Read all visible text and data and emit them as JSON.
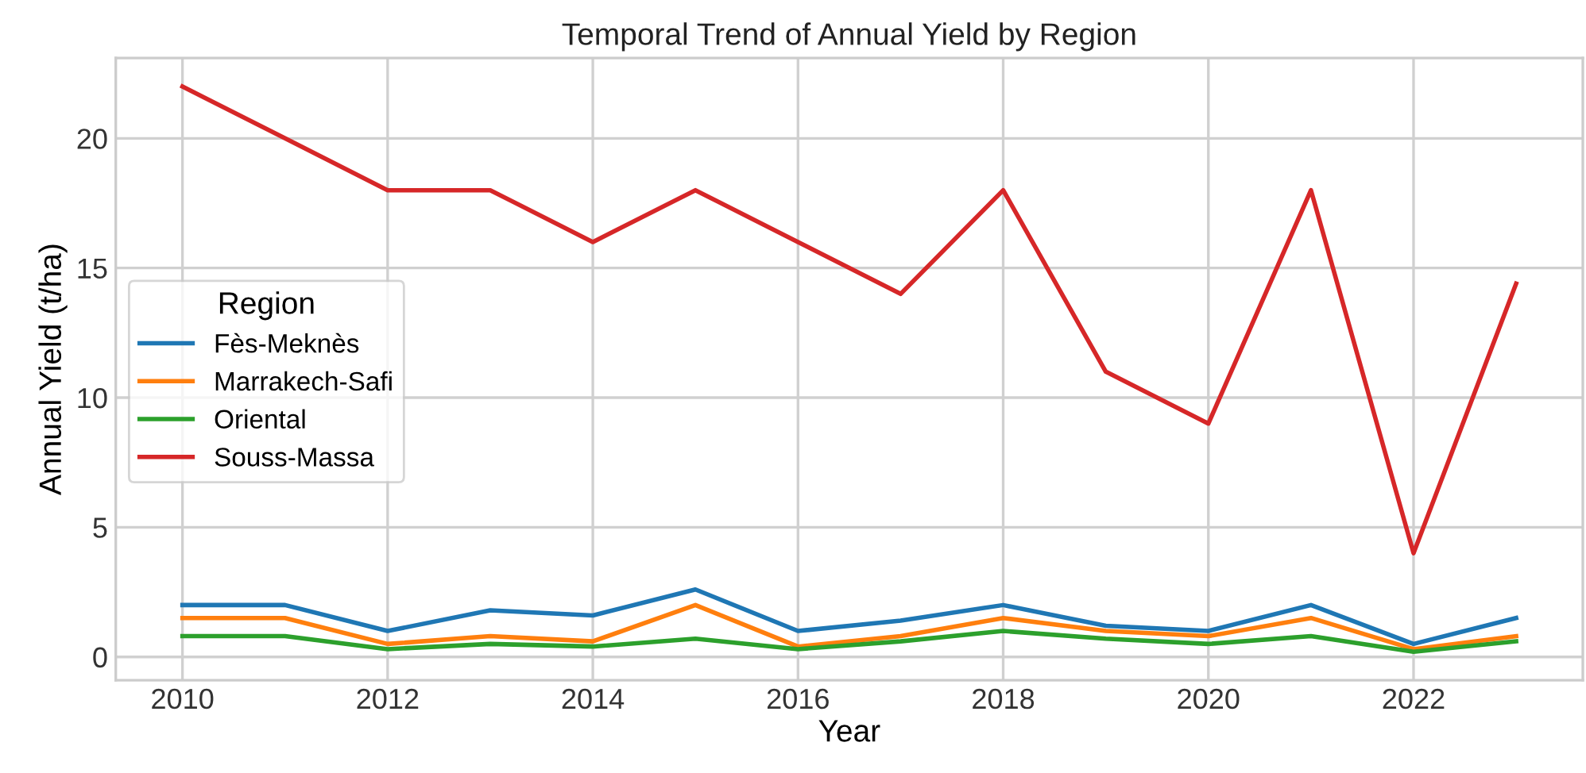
{
  "chart_data": {
    "type": "line",
    "title": "Temporal Trend of Annual Yield by Region",
    "xlabel": "Year",
    "ylabel": "Annual Yield (t/ha)",
    "legend_title": "Region",
    "x": [
      2010,
      2011,
      2012,
      2013,
      2014,
      2015,
      2016,
      2017,
      2018,
      2019,
      2020,
      2021,
      2022,
      2023
    ],
    "series": [
      {
        "name": "Fès-Meknès",
        "color": "#1f77b4",
        "values": [
          2.0,
          2.0,
          1.0,
          1.8,
          1.6,
          2.6,
          1.0,
          1.4,
          2.0,
          1.2,
          1.0,
          2.0,
          0.5,
          1.5
        ]
      },
      {
        "name": "Marrakech-Safi",
        "color": "#ff7f0e",
        "values": [
          1.5,
          1.5,
          0.5,
          0.8,
          0.6,
          2.0,
          0.4,
          0.8,
          1.5,
          1.0,
          0.8,
          1.5,
          0.3,
          0.8
        ]
      },
      {
        "name": "Oriental",
        "color": "#2ca02c",
        "values": [
          0.8,
          0.8,
          0.3,
          0.5,
          0.4,
          0.7,
          0.3,
          0.6,
          1.0,
          0.7,
          0.5,
          0.8,
          0.2,
          0.6
        ]
      },
      {
        "name": "Souss-Massa",
        "color": "#d62728",
        "values": [
          22,
          20,
          18,
          18,
          16,
          18,
          16,
          14,
          18,
          11,
          9,
          18,
          4,
          14.4
        ]
      }
    ],
    "xlim": [
      2009.35,
      2023.65
    ],
    "ylim": [
      -0.9,
      23.1
    ],
    "xticks": [
      2010,
      2012,
      2014,
      2016,
      2018,
      2020,
      2022
    ],
    "yticks": [
      0,
      5,
      10,
      15,
      20
    ],
    "grid": true,
    "legend": "center left",
    "marker": "none",
    "line_style": "solid"
  }
}
